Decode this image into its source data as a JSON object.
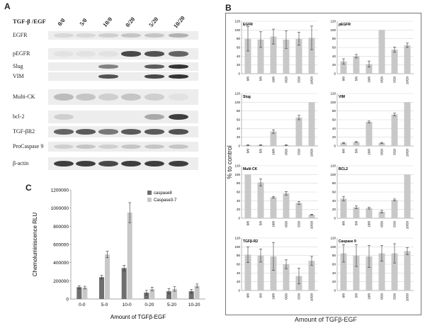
{
  "panel_labels": {
    "a": "A",
    "b": "B",
    "c": "C"
  },
  "blot": {
    "header": "TGF-β /EGF",
    "conditions": [
      "0/0",
      "5/0",
      "10/0",
      "0/20",
      "5/20",
      "10/20"
    ],
    "rows": [
      "EGFR",
      "pEGFR",
      "Slug",
      "VIM",
      "Multi-CK",
      "bcl-2",
      "TGF-βR2",
      "ProCaspase 9",
      "β-actin"
    ]
  },
  "panel_b_ylabel": "% to control",
  "panel_b_xlabel": "Amount of TGFβ-EGF",
  "chart_data": [
    {
      "type": "bar",
      "title": "EGFR",
      "categories": [
        "0/0",
        "5/0",
        "10/0",
        "0/20",
        "5/20",
        "10/20"
      ],
      "values": [
        80,
        78,
        85,
        78,
        80,
        82
      ],
      "errors": [
        28,
        18,
        17,
        20,
        15,
        27
      ],
      "ylim": [
        0,
        120
      ]
    },
    {
      "type": "bar",
      "title": "pEGFR",
      "categories": [
        "0/0",
        "5/0",
        "10/0",
        "0/20",
        "5/20",
        "10/20"
      ],
      "values": [
        28,
        40,
        22,
        100,
        55,
        65
      ],
      "errors": [
        6,
        4,
        7,
        0,
        6,
        5
      ],
      "ylim": [
        0,
        120
      ]
    },
    {
      "type": "bar",
      "title": "Slug",
      "categories": [
        "0/0",
        "5/0",
        "10/0",
        "0/20",
        "5/20",
        "10/20"
      ],
      "values": [
        2,
        2,
        33,
        2,
        65,
        100
      ],
      "errors": [
        1,
        1,
        4,
        1,
        5,
        0
      ],
      "ylim": [
        0,
        120
      ]
    },
    {
      "type": "bar",
      "title": "VIM",
      "categories": [
        "0/0",
        "5/0",
        "10/0",
        "0/20",
        "5/20",
        "10/20"
      ],
      "values": [
        7,
        9,
        55,
        7,
        72,
        100
      ],
      "errors": [
        1,
        1,
        2,
        1,
        3,
        0
      ],
      "ylim": [
        0,
        120
      ]
    },
    {
      "type": "bar",
      "title": "Multi CK",
      "categories": [
        "0/0",
        "5/0",
        "10/0",
        "0/20",
        "5/20",
        "10/20"
      ],
      "values": [
        100,
        82,
        48,
        57,
        35,
        8
      ],
      "errors": [
        0,
        8,
        2,
        4,
        3,
        1
      ],
      "ylim": [
        0,
        120
      ]
    },
    {
      "type": "bar",
      "title": "BCL2",
      "categories": [
        "0/0",
        "5/0",
        "10/0",
        "0/20",
        "5/20",
        "10/20"
      ],
      "values": [
        45,
        25,
        23,
        15,
        42,
        100
      ],
      "errors": [
        5,
        3,
        2,
        3,
        2,
        0
      ],
      "ylim": [
        0,
        120
      ]
    },
    {
      "type": "bar",
      "title": "TGFβ-R2",
      "categories": [
        "0/0",
        "5/0",
        "10/0",
        "0/20",
        "5/20",
        "10/20"
      ],
      "values": [
        82,
        80,
        78,
        60,
        33,
        68
      ],
      "errors": [
        18,
        15,
        32,
        10,
        18,
        10
      ],
      "ylim": [
        0,
        120
      ]
    },
    {
      "type": "bar",
      "title": "Caspase 9",
      "categories": [
        "0/0",
        "5/0",
        "10/0",
        "0/20",
        "5/20",
        "10/20"
      ],
      "values": [
        85,
        80,
        78,
        85,
        85,
        90
      ],
      "errors": [
        20,
        25,
        25,
        18,
        22,
        8
      ],
      "ylim": [
        0,
        120
      ]
    },
    {
      "type": "bar",
      "ylabel": "Chemoluminiscence RLU",
      "xlabel": "Amount of TGFβ-EGF",
      "categories": [
        "0-0",
        "5-0",
        "10-0",
        "0-20",
        "5-20",
        "10-20"
      ],
      "series": [
        {
          "name": "caspase8",
          "values": [
            130000,
            240000,
            340000,
            70000,
            85000,
            85000
          ],
          "errors": [
            15000,
            20000,
            30000,
            25000,
            30000,
            20000
          ]
        },
        {
          "name": "Caspase3-7",
          "values": [
            125000,
            490000,
            950000,
            110000,
            110000,
            145000
          ],
          "errors": [
            15000,
            35000,
            110000,
            20000,
            25000,
            20000
          ]
        }
      ],
      "yticks": [
        "0",
        "200000",
        "400000",
        "600000",
        "800000",
        "1000000",
        "1200000"
      ],
      "ylim": [
        0,
        1200000
      ]
    }
  ],
  "colors": {
    "bar": "#c8c8c8",
    "caspase8": "#6e6e6e",
    "caspase37": "#c8c8c8",
    "band": "#2a2a2a"
  }
}
